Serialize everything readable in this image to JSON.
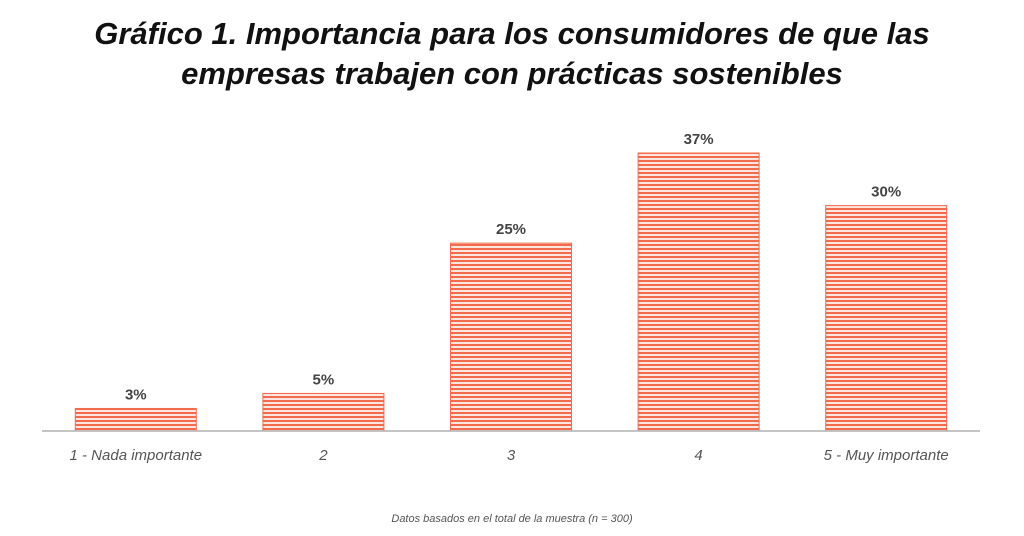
{
  "chart_data": {
    "type": "bar",
    "title_lines": [
      "Gráfico 1. Importancia para los consumidores de que las",
      "empresas trabajen con prácticas sostenibles"
    ],
    "categories": [
      "1 - Nada importante",
      "2",
      "3",
      "4",
      "5 - Muy importante"
    ],
    "values": [
      3,
      5,
      25,
      37,
      30
    ],
    "value_labels": [
      "3%",
      "5%",
      "25%",
      "37%",
      "30%"
    ],
    "xlabel": "",
    "ylabel": "",
    "ylim": [
      0,
      37
    ],
    "grid": false,
    "legend": "none",
    "bar_color": "#f26b4d",
    "bar_fill_pattern": "horizontal-stripes"
  },
  "footnote": "Datos basados en el total de la muestra (n = 300)"
}
